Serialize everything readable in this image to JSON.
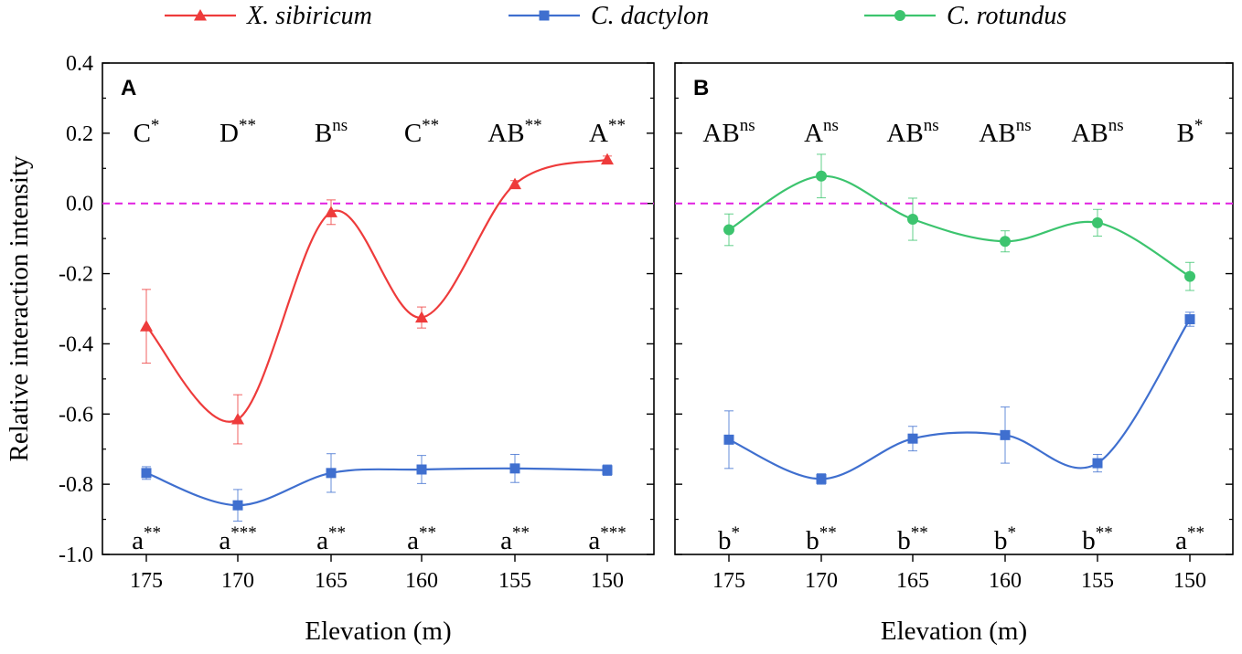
{
  "chart_data": {
    "type": "line",
    "legend": [
      {
        "label": "X. sibiricum",
        "color": "#ee3b3b",
        "marker": "triangle"
      },
      {
        "label": "C. dactylon",
        "color": "#3f6fcf",
        "marker": "square"
      },
      {
        "label": "C. rotundus",
        "color": "#3cc46e",
        "marker": "circle"
      }
    ],
    "reference_line": {
      "y": 0.0,
      "color": "#e020e0",
      "style": "dashed"
    },
    "ylabel": "Relative interaction intensity",
    "xlabel": "Elevation (m)",
    "ylim": [
      -1.0,
      0.4
    ],
    "yticks": [
      -1.0,
      -0.8,
      -0.6,
      -0.4,
      -0.2,
      0.0,
      0.2,
      0.4
    ],
    "ytick_labels": [
      "-1.0",
      "-0.8",
      "-0.6",
      "-0.4",
      "-0.2",
      "0.0",
      "0.2",
      "0.4"
    ],
    "x": [
      175,
      170,
      165,
      160,
      155,
      150
    ],
    "x_labels": [
      "175",
      "170",
      "165",
      "160",
      "155",
      "150"
    ],
    "panels": [
      {
        "label": "A",
        "series": [
          {
            "name": "X. sibiricum",
            "color": "#ee3b3b",
            "marker": "triangle",
            "values": [
              -0.35,
              -0.615,
              -0.025,
              -0.325,
              0.055,
              0.125
            ],
            "errors": [
              0.105,
              0.07,
              0.035,
              0.03,
              0.01,
              0.01
            ]
          },
          {
            "name": "C. dactylon",
            "color": "#3f6fcf",
            "marker": "square",
            "values": [
              -0.768,
              -0.86,
              -0.768,
              -0.758,
              -0.755,
              -0.76
            ],
            "errors": [
              0.018,
              0.045,
              0.055,
              0.04,
              0.04,
              0.015
            ]
          }
        ],
        "top_annotations": [
          {
            "letter": "C",
            "sig": "*"
          },
          {
            "letter": "D",
            "sig": "**"
          },
          {
            "letter": "B",
            "sig": "ns"
          },
          {
            "letter": "C",
            "sig": "**"
          },
          {
            "letter": "AB",
            "sig": "**"
          },
          {
            "letter": "A",
            "sig": "**"
          }
        ],
        "bottom_annotations": [
          {
            "letter": "a",
            "sig": "**"
          },
          {
            "letter": "a",
            "sig": "***"
          },
          {
            "letter": "a",
            "sig": "**"
          },
          {
            "letter": "a",
            "sig": "**"
          },
          {
            "letter": "a",
            "sig": "**"
          },
          {
            "letter": "a",
            "sig": "***"
          }
        ]
      },
      {
        "label": "B",
        "series": [
          {
            "name": "C. rotundus",
            "color": "#3cc46e",
            "marker": "circle",
            "values": [
              -0.075,
              0.078,
              -0.045,
              -0.108,
              -0.055,
              -0.208
            ],
            "errors": [
              0.045,
              0.062,
              0.06,
              0.03,
              0.038,
              0.04
            ]
          },
          {
            "name": "C. dactylon",
            "color": "#3f6fcf",
            "marker": "square",
            "values": [
              -0.673,
              -0.785,
              -0.67,
              -0.66,
              -0.74,
              -0.33
            ],
            "errors": [
              0.082,
              0.015,
              0.035,
              0.08,
              0.025,
              0.02
            ]
          }
        ],
        "top_annotations": [
          {
            "letter": "AB",
            "sig": "ns"
          },
          {
            "letter": "A",
            "sig": "ns"
          },
          {
            "letter": "AB",
            "sig": "ns"
          },
          {
            "letter": "AB",
            "sig": "ns"
          },
          {
            "letter": "AB",
            "sig": "ns"
          },
          {
            "letter": "B",
            "sig": "*"
          }
        ],
        "bottom_annotations": [
          {
            "letter": "b",
            "sig": "*"
          },
          {
            "letter": "b",
            "sig": "**"
          },
          {
            "letter": "b",
            "sig": "**"
          },
          {
            "letter": "b",
            "sig": "*"
          },
          {
            "letter": "b",
            "sig": "**"
          },
          {
            "letter": "a",
            "sig": "**"
          }
        ]
      }
    ]
  }
}
